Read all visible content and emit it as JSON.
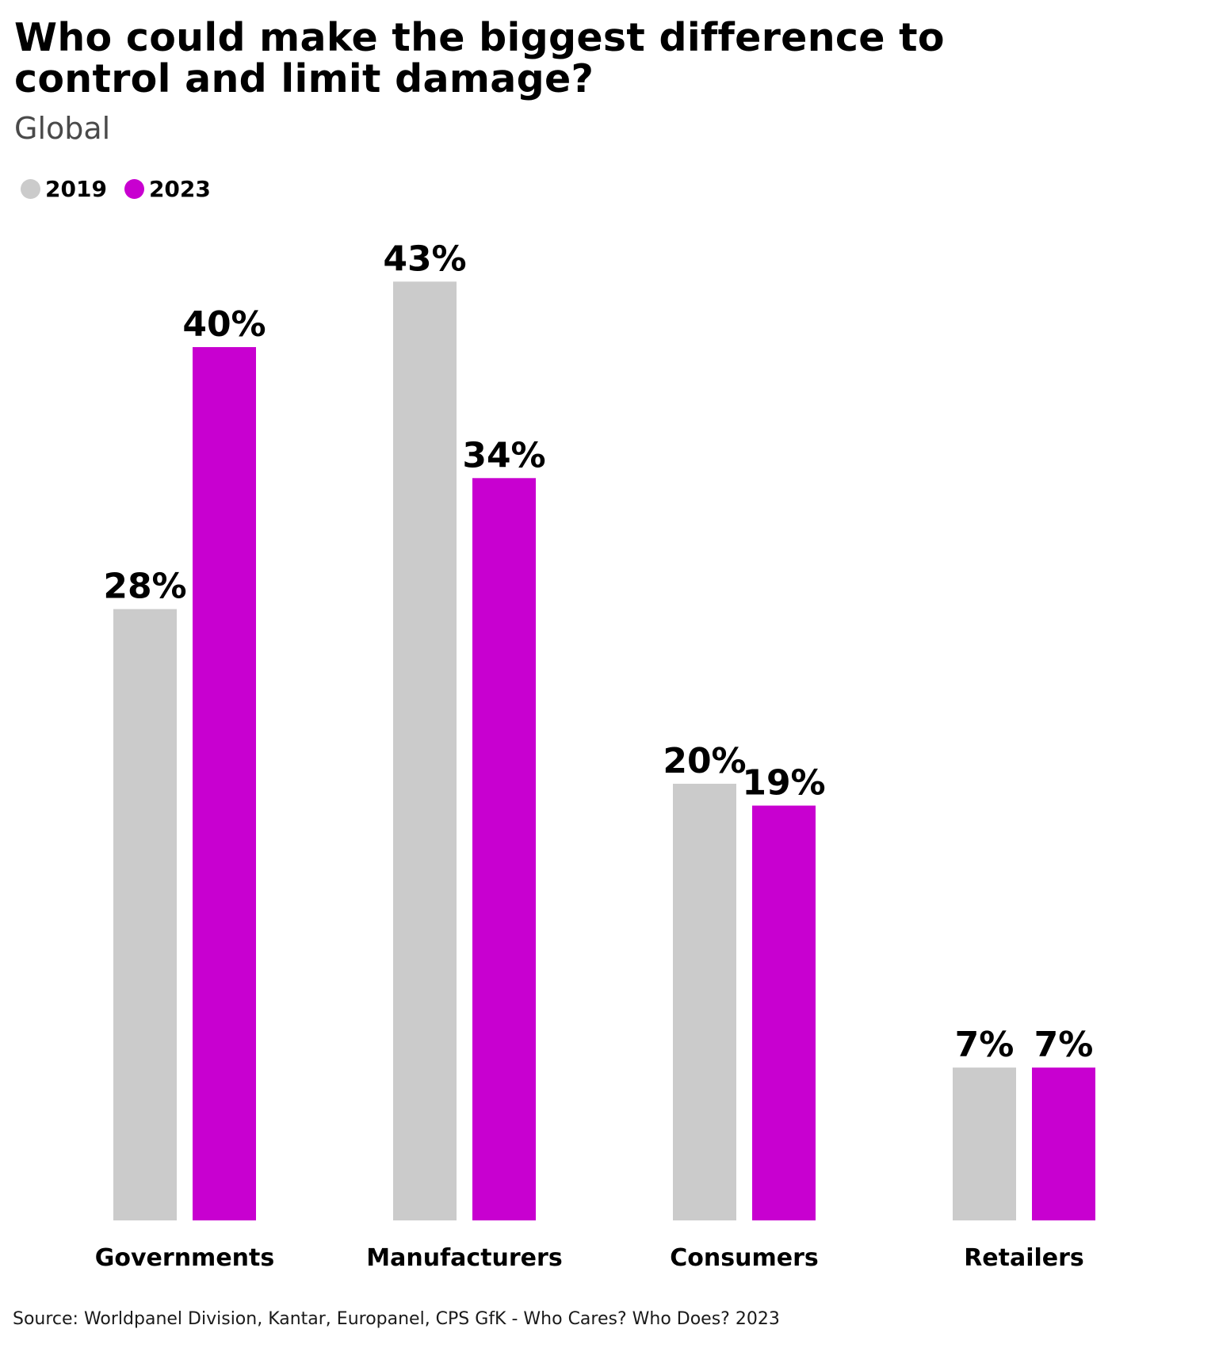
{
  "chart_data": {
    "type": "bar",
    "title": "Who could make the biggest difference to control and limit damage?",
    "subtitle": "Global",
    "categories": [
      "Governments",
      "Manufacturers",
      "Consumers",
      "Retailers"
    ],
    "series": [
      {
        "name": "2019",
        "color": "#cbcbcb",
        "values": [
          28,
          43,
          20,
          7
        ],
        "labels": [
          "28%",
          "43%",
          "20%",
          "7%"
        ]
      },
      {
        "name": "2023",
        "color": "#c800d0",
        "values": [
          40,
          34,
          19,
          7
        ],
        "labels": [
          "40%",
          "34%",
          "19%",
          "7%"
        ]
      }
    ],
    "ylim": [
      0,
      43
    ],
    "grid": false,
    "legend_position": "top-left",
    "source": "Source: Worldpanel Division, Kantar, Europanel, CPS GfK - Who Cares? Who Does? 2023"
  }
}
